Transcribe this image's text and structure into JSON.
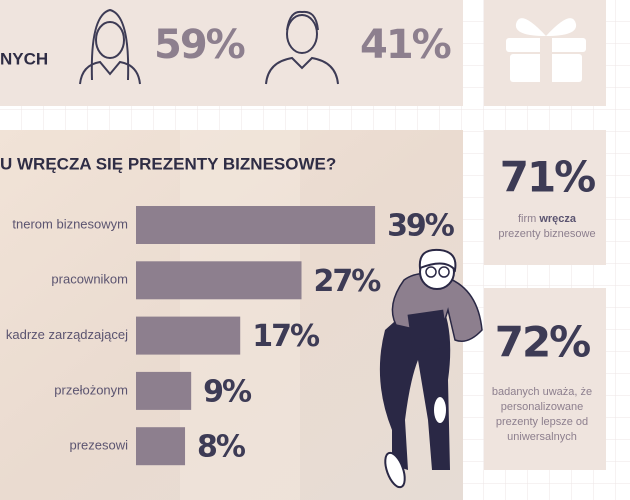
{
  "chart_data": {
    "type": "bar",
    "orientation": "horizontal",
    "title": "U WRĘCZA SIĘ PREZENTY BIZNESOWE?",
    "categories": [
      "tnerom biznesowym",
      "pracownikom",
      "kadrze zarządzającej",
      "przełożonym",
      "prezesowi"
    ],
    "values": [
      39,
      27,
      17,
      9,
      8
    ],
    "value_labels": [
      "39%",
      "27%",
      "17%",
      "9%",
      "8%"
    ],
    "color": "#8d7f8e"
  },
  "gender": {
    "label": "NYCH",
    "women": "59%",
    "men": "41%"
  },
  "stats": [
    {
      "value": "71%",
      "text_before": "firm ",
      "text_bold": "wręcza",
      "text_after": "prezenty biznesowe"
    },
    {
      "value": "72%",
      "lines": [
        "badanych uważa, że",
        "personalizowane",
        "prezenty lepsze od",
        "uniwersalnych"
      ]
    }
  ]
}
